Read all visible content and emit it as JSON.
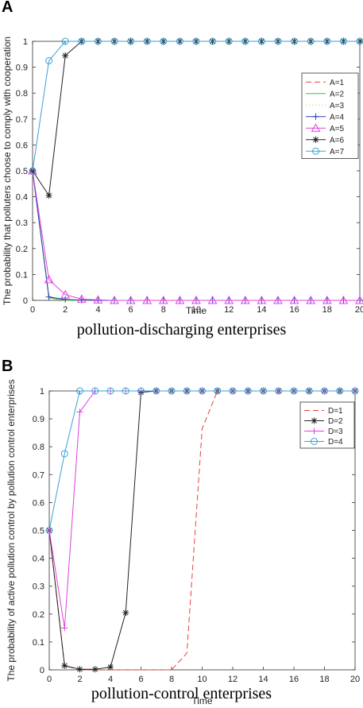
{
  "panels": [
    {
      "letter": "A",
      "caption": "pollution-discharging enterprises"
    },
    {
      "letter": "B",
      "caption": "pollution-control enterprises"
    }
  ],
  "chart_data": [
    {
      "type": "line",
      "xlabel": "Time",
      "ylabel": "The probability that polluters choose to comply with cooperation",
      "xlim": [
        0,
        20
      ],
      "ylim": [
        0,
        1
      ],
      "xticks": [
        0,
        2,
        4,
        6,
        8,
        10,
        12,
        14,
        16,
        18,
        20
      ],
      "yticks": [
        0,
        0.1,
        0.2,
        0.3,
        0.4,
        0.5,
        0.6,
        0.7,
        0.8,
        0.9,
        1
      ],
      "legend_position": "top-right",
      "grid": false,
      "x": [
        0,
        1,
        2,
        3,
        4,
        5,
        6,
        7,
        8,
        9,
        10,
        11,
        12,
        13,
        14,
        15,
        16,
        17,
        18,
        19,
        20
      ],
      "series": [
        {
          "name": "A=1",
          "color": "#e8413a",
          "dash": "7,4",
          "marker": "none",
          "values": [
            0.5,
            0.01,
            0,
            0,
            0,
            0,
            0,
            0,
            0,
            0,
            0,
            0,
            0,
            0,
            0,
            0,
            0,
            0,
            0,
            0,
            0
          ]
        },
        {
          "name": "A=2",
          "color": "#2ecc2e",
          "dash": "",
          "marker": "none",
          "values": [
            0.5,
            0.01,
            0,
            0,
            0,
            0,
            0,
            0,
            0,
            0,
            0,
            0,
            0,
            0,
            0,
            0,
            0,
            0,
            0,
            0,
            0
          ]
        },
        {
          "name": "A=3",
          "color": "#e8c81a",
          "dash": "1,3",
          "marker": "none",
          "values": [
            0.5,
            0.01,
            0,
            0,
            0,
            0,
            0,
            0,
            0,
            0,
            0,
            0,
            0,
            0,
            0,
            0,
            0,
            0,
            0,
            0,
            0
          ]
        },
        {
          "name": "A=4",
          "color": "#2a3fbf",
          "dash": "",
          "marker": "plus",
          "values": [
            0.5,
            0.013,
            0.004,
            0.001,
            0,
            0,
            0,
            0,
            0,
            0,
            0,
            0,
            0,
            0,
            0,
            0,
            0,
            0,
            0,
            0,
            0
          ]
        },
        {
          "name": "A=5",
          "color": "#e040e0",
          "dash": "",
          "marker": "triangle",
          "values": [
            0.5,
            0.08,
            0.022,
            0.005,
            0.002,
            0,
            0,
            0,
            0,
            0,
            0,
            0,
            0,
            0,
            0,
            0,
            0,
            0,
            0,
            0,
            0
          ]
        },
        {
          "name": "A=6",
          "color": "#222222",
          "dash": "",
          "marker": "star",
          "values": [
            0.5,
            0.405,
            0.945,
            1,
            1,
            1,
            1,
            1,
            1,
            1,
            1,
            1,
            1,
            1,
            1,
            1,
            1,
            1,
            1,
            1,
            1
          ]
        },
        {
          "name": "A=7",
          "color": "#3ba0d8",
          "dash": "",
          "marker": "circle",
          "values": [
            0.5,
            0.925,
            1,
            1,
            1,
            1,
            1,
            1,
            1,
            1,
            1,
            1,
            1,
            1,
            1,
            1,
            1,
            1,
            1,
            1,
            1
          ]
        }
      ]
    },
    {
      "type": "line",
      "xlabel": "Time",
      "ylabel": "The probability of active pollution control by pollution control enterprises",
      "xlim": [
        0,
        20
      ],
      "ylim": [
        0,
        1
      ],
      "xticks": [
        0,
        2,
        4,
        6,
        8,
        10,
        12,
        14,
        16,
        18,
        20
      ],
      "yticks": [
        0,
        0.1,
        0.2,
        0.3,
        0.4,
        0.5,
        0.6,
        0.7,
        0.8,
        0.9,
        1
      ],
      "legend_position": "top-right",
      "grid": false,
      "x": [
        0,
        1,
        2,
        3,
        4,
        5,
        6,
        7,
        8,
        9,
        10,
        11,
        12,
        13,
        14,
        15,
        16,
        17,
        18,
        19,
        20
      ],
      "series": [
        {
          "name": "D=1",
          "color": "#e8413a",
          "dash": "7,4",
          "marker": "none",
          "values": [
            0.5,
            0.015,
            0,
            0,
            0,
            0,
            0,
            0,
            0,
            0.06,
            0.865,
            1,
            1,
            1,
            1,
            1,
            1,
            1,
            1,
            1,
            1
          ]
        },
        {
          "name": "D=2",
          "color": "#222222",
          "dash": "",
          "marker": "star",
          "values": [
            0.5,
            0.015,
            0.002,
            0.002,
            0.01,
            0.205,
            0.995,
            1,
            1,
            1,
            1,
            1,
            1,
            1,
            1,
            1,
            1,
            1,
            1,
            1,
            1
          ]
        },
        {
          "name": "D=3",
          "color": "#e040e0",
          "dash": "",
          "marker": "plus",
          "values": [
            0.5,
            0.15,
            0.925,
            1,
            1,
            1,
            1,
            1,
            1,
            1,
            1,
            1,
            1,
            1,
            1,
            1,
            1,
            1,
            1,
            1,
            1
          ]
        },
        {
          "name": "D=4",
          "color": "#3ba0d8",
          "dash": "",
          "marker": "circle",
          "values": [
            0.5,
            0.775,
            1,
            1,
            1,
            1,
            1,
            1,
            1,
            1,
            1,
            1,
            1,
            1,
            1,
            1,
            1,
            1,
            1,
            1,
            1
          ]
        }
      ]
    }
  ]
}
